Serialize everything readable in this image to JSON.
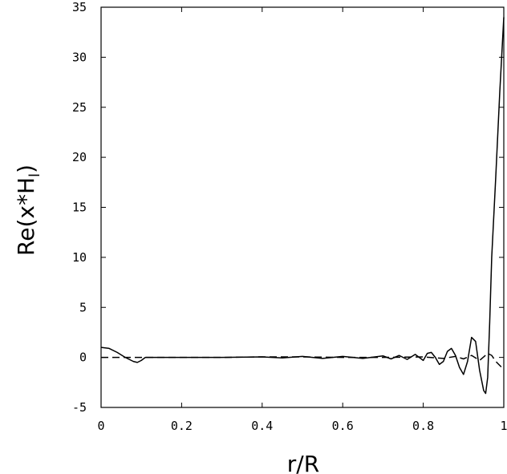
{
  "chart_data": {
    "type": "line",
    "xlabel": "r/R",
    "ylabel_main": "Re(x*H",
    "ylabel_sub": "l",
    "ylabel_close": ")",
    "xlim": [
      0,
      1
    ],
    "ylim": [
      -5,
      35
    ],
    "xticks": [
      0,
      0.2,
      0.4,
      0.6,
      0.8,
      1
    ],
    "xtick_labels": [
      "0",
      "0.2",
      "0.4",
      "0.6",
      "0.8",
      "1"
    ],
    "yticks": [
      -5,
      0,
      5,
      10,
      15,
      20,
      25,
      30,
      35
    ],
    "ytick_labels": [
      "-5",
      "0",
      "5",
      "10",
      "15",
      "20",
      "25",
      "30",
      "35"
    ],
    "grid": false,
    "series": [
      {
        "style": "solid",
        "color": "#000000",
        "x": [
          0.0,
          0.02,
          0.04,
          0.06,
          0.08,
          0.09,
          0.1,
          0.11,
          0.15,
          0.2,
          0.3,
          0.4,
          0.45,
          0.5,
          0.55,
          0.6,
          0.65,
          0.7,
          0.72,
          0.74,
          0.76,
          0.78,
          0.8,
          0.81,
          0.82,
          0.83,
          0.84,
          0.85,
          0.86,
          0.87,
          0.88,
          0.89,
          0.9,
          0.91,
          0.92,
          0.93,
          0.94,
          0.95,
          0.955,
          0.96,
          0.965,
          0.97,
          0.98,
          0.99,
          1.0
        ],
        "y": [
          1.0,
          0.9,
          0.5,
          0.0,
          -0.4,
          -0.5,
          -0.3,
          0.0,
          0.0,
          0.0,
          0.0,
          0.05,
          -0.05,
          0.1,
          -0.1,
          0.1,
          -0.1,
          0.15,
          -0.15,
          0.2,
          -0.2,
          0.3,
          -0.3,
          0.4,
          0.5,
          0.0,
          -0.7,
          -0.4,
          0.6,
          0.9,
          0.2,
          -1.0,
          -1.7,
          -0.4,
          2.0,
          1.6,
          -1.3,
          -3.3,
          -3.6,
          -2.0,
          3.5,
          10.0,
          18.0,
          26.5,
          34.0
        ]
      },
      {
        "style": "dashed",
        "color": "#000000",
        "x": [
          0.0,
          0.05,
          0.1,
          0.2,
          0.3,
          0.4,
          0.5,
          0.6,
          0.7,
          0.8,
          0.85,
          0.88,
          0.9,
          0.92,
          0.94,
          0.96,
          0.97,
          0.98,
          0.99,
          1.0
        ],
        "y": [
          0.0,
          0.0,
          0.0,
          0.0,
          0.0,
          0.05,
          0.05,
          0.0,
          0.0,
          0.05,
          -0.1,
          0.1,
          -0.15,
          0.2,
          -0.3,
          0.4,
          0.2,
          -0.4,
          -0.8,
          -1.2
        ]
      }
    ]
  }
}
